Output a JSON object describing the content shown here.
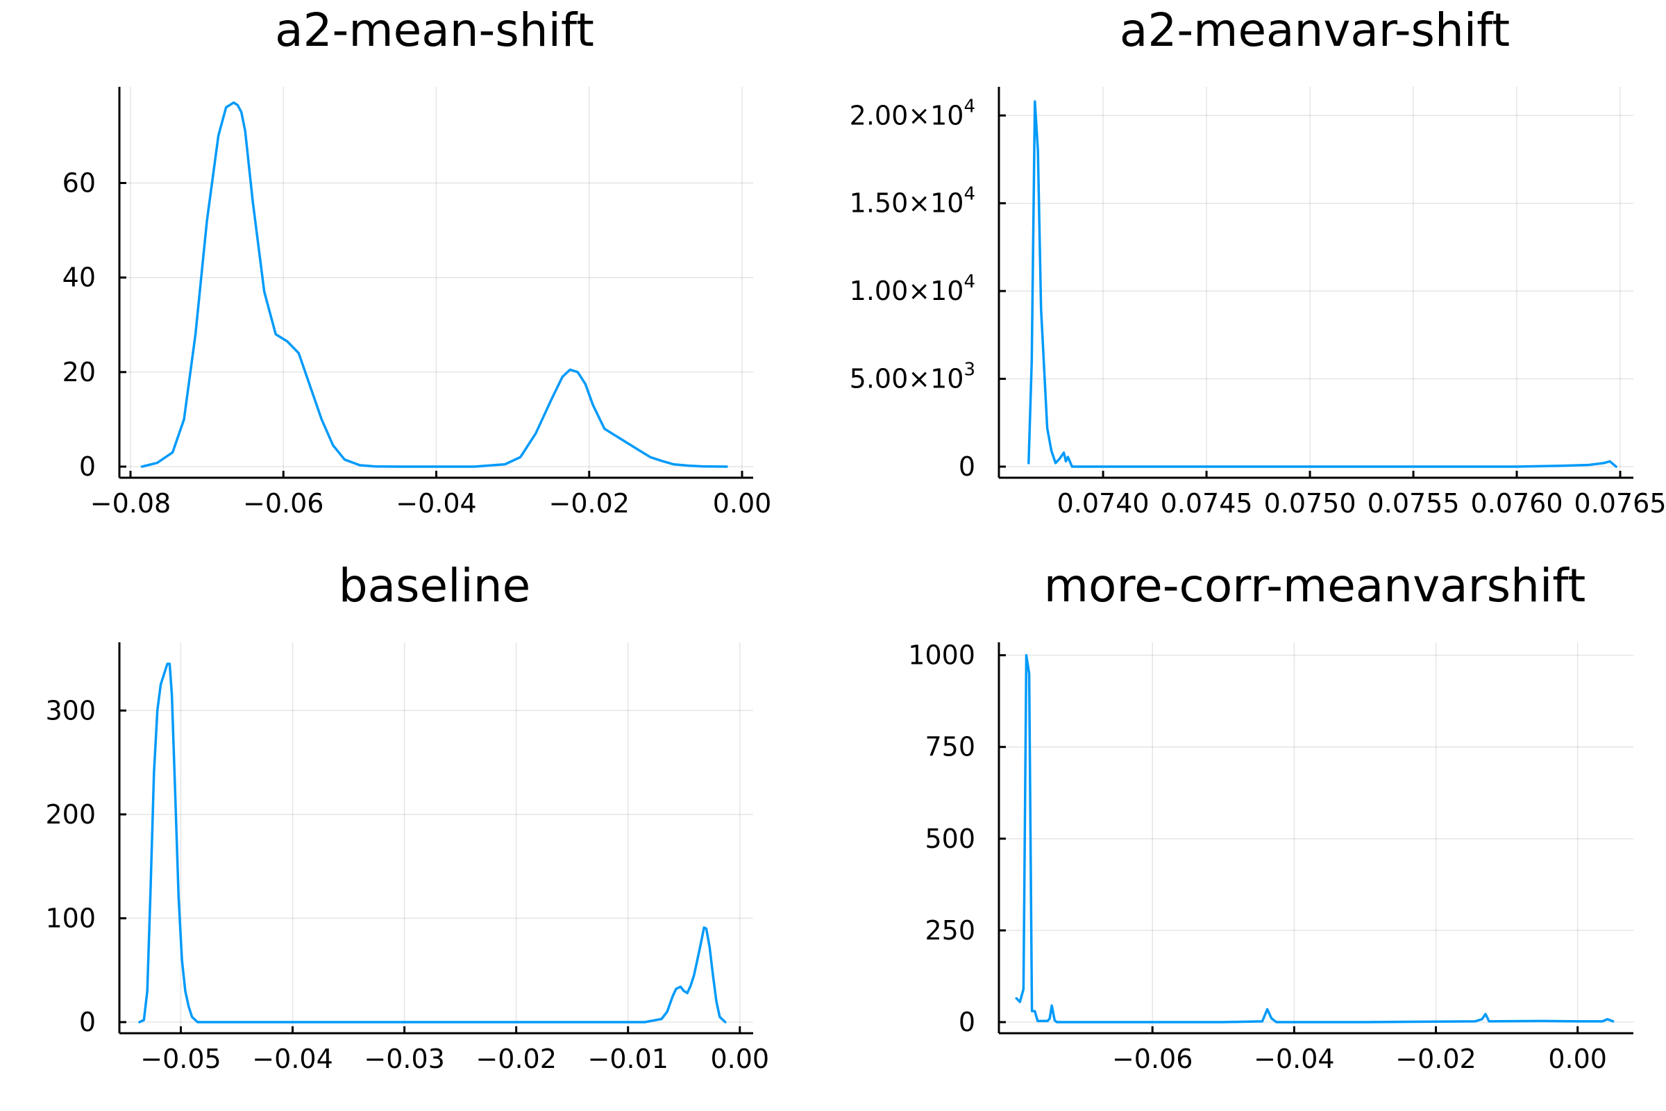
{
  "chart_data": [
    {
      "type": "line",
      "title": "a2-mean-shift",
      "series_color": "#009AF9",
      "xlim": [
        -0.08,
        0.0
      ],
      "ylim": [
        0,
        78
      ],
      "xticks": [
        -0.08,
        -0.06,
        -0.04,
        -0.02,
        0.0
      ],
      "xticklabels": [
        "−0.08",
        "−0.06",
        "−0.04",
        "−0.02",
        "0.00"
      ],
      "yticks": [
        0,
        20,
        40,
        60
      ],
      "yticklabels": [
        {
          "mant": "0"
        },
        {
          "mant": "20"
        },
        {
          "mant": "40"
        },
        {
          "mant": "60"
        }
      ],
      "x": [
        -0.0785,
        -0.0765,
        -0.0745,
        -0.073,
        -0.0715,
        -0.07,
        -0.0685,
        -0.0675,
        -0.0665,
        -0.066,
        -0.0655,
        -0.065,
        -0.064,
        -0.0625,
        -0.061,
        -0.0595,
        -0.058,
        -0.0565,
        -0.055,
        -0.0535,
        -0.052,
        -0.05,
        -0.048,
        -0.045,
        -0.04,
        -0.035,
        -0.031,
        -0.029,
        -0.027,
        -0.025,
        -0.0235,
        -0.0225,
        -0.0215,
        -0.0205,
        -0.0195,
        -0.018,
        -0.0165,
        -0.015,
        -0.0135,
        -0.012,
        -0.0105,
        -0.009,
        -0.007,
        -0.005,
        -0.002
      ],
      "y": [
        0,
        0.8,
        3,
        10,
        28,
        52,
        70,
        76,
        77,
        76.5,
        75,
        71,
        56,
        37,
        28,
        26.5,
        24,
        17,
        10,
        4.5,
        1.5,
        0.3,
        0.05,
        0,
        0,
        0,
        0.5,
        2,
        7,
        14,
        19,
        20.5,
        20,
        17.5,
        13,
        8,
        6.5,
        5,
        3.5,
        2,
        1.2,
        0.5,
        0.2,
        0.05,
        0
      ]
    },
    {
      "type": "line",
      "title": "a2-meanvar-shift",
      "series_color": "#009AF9",
      "xlim": [
        0.07355,
        0.07651
      ],
      "ylim": [
        0,
        21000
      ],
      "xticks": [
        0.074,
        0.0745,
        0.075,
        0.0755,
        0.076,
        0.0765
      ],
      "xticklabels": [
        "0.0740",
        "0.0745",
        "0.0750",
        "0.0755",
        "0.0760",
        "0.0765"
      ],
      "yticks": [
        0,
        5000,
        10000,
        15000,
        20000
      ],
      "yticklabels": [
        {
          "mant": "0"
        },
        {
          "mant": "5.00×10",
          "exp": "3"
        },
        {
          "mant": "1.00×10",
          "exp": "4"
        },
        {
          "mant": "1.50×10",
          "exp": "4"
        },
        {
          "mant": "2.00×10",
          "exp": "4"
        }
      ],
      "x": [
        0.07364,
        0.073655,
        0.07367,
        0.073685,
        0.0737,
        0.07373,
        0.07375,
        0.07377,
        0.07379,
        0.07381,
        0.07382,
        0.07383,
        0.07385,
        0.0739,
        0.0745,
        0.0755,
        0.076,
        0.07622,
        0.07635,
        0.07642,
        0.07645,
        0.07648
      ],
      "y": [
        200,
        6000,
        20800,
        18000,
        9000,
        2200,
        900,
        200,
        450,
        800,
        300,
        550,
        0,
        0,
        0,
        0,
        0,
        50,
        100,
        200,
        300,
        0
      ]
    },
    {
      "type": "line",
      "title": "baseline",
      "series_color": "#009AF9",
      "xlim": [
        -0.0545,
        0.0002
      ],
      "ylim": [
        0,
        355
      ],
      "xticks": [
        -0.05,
        -0.04,
        -0.03,
        -0.02,
        -0.01,
        0.0
      ],
      "xticklabels": [
        "−0.05",
        "−0.04",
        "−0.03",
        "−0.02",
        "−0.01",
        "0.00"
      ],
      "yticks": [
        0,
        100,
        200,
        300
      ],
      "yticklabels": [
        {
          "mant": "0"
        },
        {
          "mant": "100"
        },
        {
          "mant": "200"
        },
        {
          "mant": "300"
        }
      ],
      "x": [
        -0.0537,
        -0.0533,
        -0.053,
        -0.0527,
        -0.0524,
        -0.0521,
        -0.0518,
        -0.0515,
        -0.0512,
        -0.051,
        -0.0508,
        -0.0505,
        -0.0502,
        -0.0499,
        -0.0496,
        -0.0493,
        -0.049,
        -0.0485,
        -0.04,
        -0.02,
        -0.0085,
        -0.007,
        -0.0065,
        -0.006,
        -0.0057,
        -0.0053,
        -0.005,
        -0.0047,
        -0.0044,
        -0.0041,
        -0.0038,
        -0.0035,
        -0.0032,
        -0.003,
        -0.0027,
        -0.0024,
        -0.0021,
        -0.0018,
        -0.0013
      ],
      "y": [
        0,
        2,
        30,
        130,
        240,
        300,
        325,
        335,
        345,
        345,
        315,
        220,
        120,
        60,
        30,
        15,
        5,
        0,
        0,
        0,
        0,
        3,
        10,
        25,
        32,
        34,
        30,
        28,
        35,
        45,
        60,
        75,
        91,
        90,
        72,
        45,
        20,
        5,
        0
      ]
    },
    {
      "type": "line",
      "title": "more-corr-meanvarshift",
      "series_color": "#009AF9",
      "xlim": [
        -0.0801,
        0.0063
      ],
      "ylim": [
        0,
        1005
      ],
      "xticks": [
        -0.06,
        -0.04,
        -0.02,
        0.0
      ],
      "xticklabels": [
        "−0.06",
        "−0.04",
        "−0.02",
        "0.00"
      ],
      "yticks": [
        0,
        250,
        500,
        750,
        1000
      ],
      "yticklabels": [
        {
          "mant": "0"
        },
        {
          "mant": "250"
        },
        {
          "mant": "500"
        },
        {
          "mant": "750"
        },
        {
          "mant": "1000"
        }
      ],
      "x": [
        -0.0792,
        -0.0787,
        -0.0782,
        -0.0778,
        -0.0774,
        -0.077,
        -0.0766,
        -0.0762,
        -0.0755,
        -0.0748,
        -0.0745,
        -0.0742,
        -0.0738,
        -0.0735,
        -0.07,
        -0.05,
        -0.0445,
        -0.0438,
        -0.0432,
        -0.0425,
        -0.03,
        -0.0145,
        -0.0135,
        -0.013,
        -0.0125,
        -0.005,
        0.0,
        0.0035,
        0.0042,
        0.005
      ],
      "y": [
        65,
        55,
        90,
        1000,
        950,
        30,
        30,
        3,
        3,
        3,
        10,
        45,
        5,
        0,
        0,
        0,
        2,
        35,
        10,
        0,
        0,
        2,
        8,
        22,
        2,
        3,
        2,
        2,
        8,
        2
      ]
    }
  ]
}
